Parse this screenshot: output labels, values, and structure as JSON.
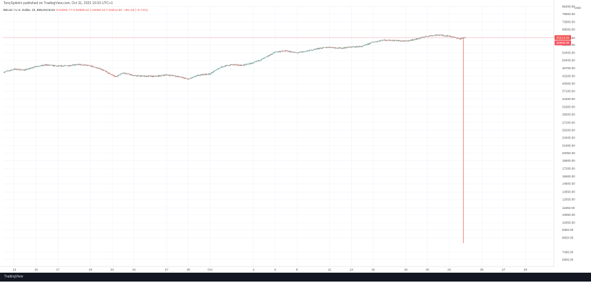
{
  "header": {
    "publisher": "TonySpilotro published on TradingView.com, Oct 31, 2021 16:53 UTC+1",
    "symbol": "Bitcoin / U.S. Dollar, 1h, BINANCEUS",
    "ohlc": "O:63004.77  H:63995.64  L:62000.42  C:63214.84  −451.53 (−0.71%)"
  },
  "footer": {
    "brand": "TradingView"
  },
  "colors": {
    "up": "#26a69a",
    "down": "#ef5350",
    "grid": "#f0f3fa",
    "axis_text": "#555555",
    "footer_bg": "#131722"
  },
  "chart_data": {
    "type": "candlestick",
    "interval": "1h",
    "currency": "USD",
    "y_scale": "log",
    "ylim": [
      6500,
      87000
    ],
    "y_ticks": [
      "6965.00",
      "7490.00",
      "8650.00",
      "9350.00",
      "10050.00",
      "10850.00",
      "11650.00",
      "12650.00",
      "13650.00",
      "14800.00",
      "15900.00",
      "17200.00",
      "18600.00",
      "20050.00",
      "21600.00",
      "23400.00",
      "25200.00",
      "27200.00",
      "29500.00",
      "31800.00",
      "34400.00",
      "37100.00",
      "40000.00",
      "43200.00",
      "46700.00",
      "50400.00",
      "54400.00",
      "58800.00",
      "63000.00",
      "68500.00",
      "73900.00",
      "79800.00",
      "86200.00"
    ],
    "x_ticks": [
      "13",
      "15",
      "17",
      "20",
      "22",
      "24",
      "27",
      "29",
      "Oct",
      "4",
      "6",
      "8",
      "11",
      "13",
      "15",
      "18",
      "20",
      "22",
      "25",
      "27",
      "29"
    ],
    "x_tick_days": [
      13,
      15,
      17,
      20,
      22,
      24,
      27,
      29,
      31,
      35,
      37,
      39,
      42,
      44,
      46,
      49,
      51,
      53,
      56,
      58,
      60
    ],
    "xlim_days": [
      12,
      62.5
    ],
    "price_labels": [
      {
        "text": "63214.84",
        "value": 63214.84,
        "kind": "last"
      },
      {
        "text": "60000.00",
        "value": 60000,
        "kind": "level"
      }
    ],
    "axis_unit": "USD",
    "close_path": [
      [
        12,
        44800
      ],
      [
        13,
        46200
      ],
      [
        14,
        45800
      ],
      [
        15,
        47500
      ],
      [
        16,
        48200
      ],
      [
        17,
        47600
      ],
      [
        18,
        47900
      ],
      [
        19,
        48400
      ],
      [
        20,
        47700
      ],
      [
        21,
        46200
      ],
      [
        22,
        43600
      ],
      [
        22.3,
        42800
      ],
      [
        23,
        44600
      ],
      [
        24,
        43300
      ],
      [
        25,
        43100
      ],
      [
        26,
        43000
      ],
      [
        27,
        43700
      ],
      [
        28,
        43000
      ],
      [
        29,
        41800
      ],
      [
        30,
        43600
      ],
      [
        31,
        44100
      ],
      [
        32,
        47200
      ],
      [
        33,
        48300
      ],
      [
        34,
        48000
      ],
      [
        35,
        49200
      ],
      [
        36,
        51500
      ],
      [
        37,
        54800
      ],
      [
        38,
        55400
      ],
      [
        39,
        54300
      ],
      [
        40,
        55400
      ],
      [
        41,
        56800
      ],
      [
        42,
        57500
      ],
      [
        43,
        56900
      ],
      [
        44,
        57600
      ],
      [
        45,
        57900
      ],
      [
        46,
        60500
      ],
      [
        47,
        61700
      ],
      [
        48,
        61400
      ],
      [
        49,
        61000
      ],
      [
        50,
        62300
      ],
      [
        51,
        64200
      ],
      [
        52,
        64900
      ],
      [
        53,
        64200
      ],
      [
        54,
        62400
      ],
      [
        54.5,
        63214.84
      ]
    ],
    "wick": {
      "day": 54.3,
      "high": 63300,
      "low": 8200
    },
    "last": 63214.84
  }
}
